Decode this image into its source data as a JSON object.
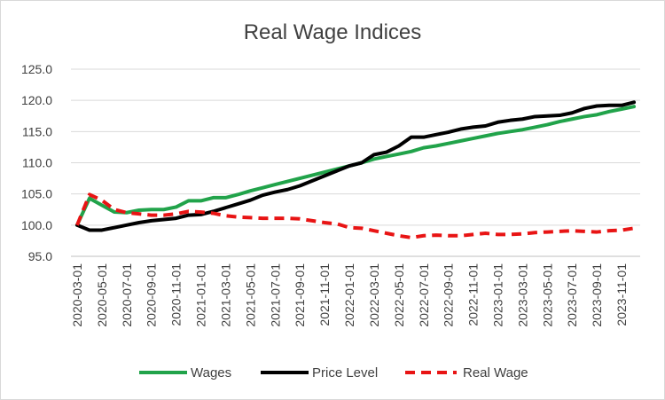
{
  "chart_data": {
    "type": "line",
    "title": "Real Wage Indices",
    "xlabel": "",
    "ylabel": "",
    "ylim": [
      95,
      125
    ],
    "y_ticks": [
      "95.0",
      "100.0",
      "105.0",
      "110.0",
      "115.0",
      "120.0",
      "125.0"
    ],
    "grid": true,
    "legend_position": "bottom",
    "x": [
      "2020-03-01",
      "2020-04-01",
      "2020-05-01",
      "2020-06-01",
      "2020-07-01",
      "2020-08-01",
      "2020-09-01",
      "2020-10-01",
      "2020-11-01",
      "2020-12-01",
      "2021-01-01",
      "2021-02-01",
      "2021-03-01",
      "2021-04-01",
      "2021-05-01",
      "2021-06-01",
      "2021-07-01",
      "2021-08-01",
      "2021-09-01",
      "2021-10-01",
      "2021-11-01",
      "2021-12-01",
      "2022-01-01",
      "2022-02-01",
      "2022-03-01",
      "2022-04-01",
      "2022-05-01",
      "2022-06-01",
      "2022-07-01",
      "2022-08-01",
      "2022-09-01",
      "2022-10-01",
      "2022-11-01",
      "2022-12-01",
      "2023-01-01",
      "2023-02-01",
      "2023-03-01",
      "2023-04-01",
      "2023-05-01",
      "2023-06-01",
      "2023-07-01",
      "2023-08-01",
      "2023-09-01",
      "2023-10-01",
      "2023-11-01",
      "2023-12-01"
    ],
    "x_tick_labels": [
      "2020-03-01",
      "2020-05-01",
      "2020-07-01",
      "2020-09-01",
      "2020-11-01",
      "2021-01-01",
      "2021-03-01",
      "2021-05-01",
      "2021-07-01",
      "2021-09-01",
      "2021-11-01",
      "2022-01-01",
      "2022-03-01",
      "2022-05-01",
      "2022-07-01",
      "2022-09-01",
      "2022-11-01",
      "2023-01-01",
      "2023-03-01",
      "2023-05-01",
      "2023-07-01",
      "2023-09-01",
      "2023-11-01"
    ],
    "series": [
      {
        "name": "Wages",
        "color": "#21a34a",
        "style": "solid",
        "values": [
          100.0,
          104.3,
          103.2,
          102.1,
          102.0,
          102.4,
          102.5,
          102.5,
          102.9,
          103.9,
          103.9,
          104.4,
          104.4,
          104.9,
          105.5,
          106.0,
          106.5,
          107.0,
          107.5,
          108.0,
          108.5,
          109.0,
          109.5,
          110.0,
          110.6,
          111.0,
          111.4,
          111.8,
          112.4,
          112.7,
          113.1,
          113.5,
          113.9,
          114.3,
          114.7,
          115.0,
          115.3,
          115.7,
          116.1,
          116.6,
          117.0,
          117.4,
          117.7,
          118.2,
          118.6,
          119.0
        ]
      },
      {
        "name": "Price Level",
        "color": "#000000",
        "style": "solid",
        "values": [
          100.0,
          99.2,
          99.2,
          99.6,
          100.0,
          100.4,
          100.7,
          100.9,
          101.1,
          101.6,
          101.7,
          102.2,
          102.8,
          103.4,
          104.0,
          104.8,
          105.3,
          105.7,
          106.3,
          107.1,
          107.9,
          108.7,
          109.5,
          110.0,
          111.3,
          111.7,
          112.7,
          114.1,
          114.1,
          114.5,
          114.9,
          115.4,
          115.7,
          115.9,
          116.5,
          116.8,
          117.0,
          117.4,
          117.5,
          117.6,
          118.0,
          118.7,
          119.1,
          119.2,
          119.2,
          119.7
        ]
      },
      {
        "name": "Real Wage",
        "color": "#e81414",
        "style": "dashed",
        "values": [
          100.0,
          104.9,
          104.0,
          102.5,
          102.0,
          101.8,
          101.6,
          101.6,
          101.8,
          102.2,
          102.1,
          101.9,
          101.5,
          101.3,
          101.2,
          101.1,
          101.1,
          101.1,
          101.0,
          100.7,
          100.4,
          100.2,
          99.6,
          99.5,
          99.1,
          98.7,
          98.3,
          98.0,
          98.3,
          98.4,
          98.3,
          98.3,
          98.5,
          98.7,
          98.5,
          98.5,
          98.6,
          98.8,
          98.9,
          99.0,
          99.1,
          99.0,
          98.9,
          99.1,
          99.2,
          99.5
        ]
      }
    ]
  }
}
